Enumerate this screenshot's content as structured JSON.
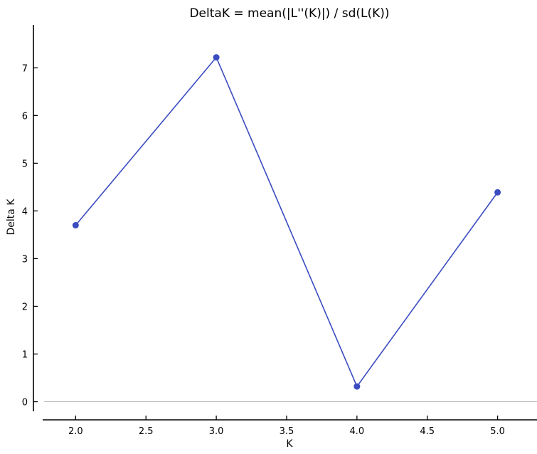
{
  "chart_data": {
    "type": "line",
    "title": "DeltaK = mean(|L''(K)|) / sd(L(K))",
    "xlabel": "K",
    "ylabel": "Delta K",
    "xlim": [
      1.7,
      5.28
    ],
    "ylim": [
      -0.38,
      7.9
    ],
    "xticks": [
      2.0,
      2.5,
      3.0,
      3.5,
      4.0,
      4.5,
      5.0
    ],
    "xtick_labels": [
      "2.0",
      "2.5",
      "3.0",
      "3.5",
      "4.0",
      "4.5",
      "5.0"
    ],
    "yticks": [
      0,
      1,
      2,
      3,
      4,
      5,
      6,
      7
    ],
    "ytick_labels": [
      "0",
      "1",
      "2",
      "3",
      "4",
      "5",
      "6",
      "7"
    ],
    "reference_line_y": 0,
    "grid": false,
    "legend": "none",
    "series": [
      {
        "x": [
          2.0,
          3.0,
          4.0,
          5.0
        ],
        "y": [
          3.7,
          7.22,
          0.32,
          4.39
        ],
        "color": "#3b4cc0",
        "marker": "circle"
      }
    ]
  }
}
